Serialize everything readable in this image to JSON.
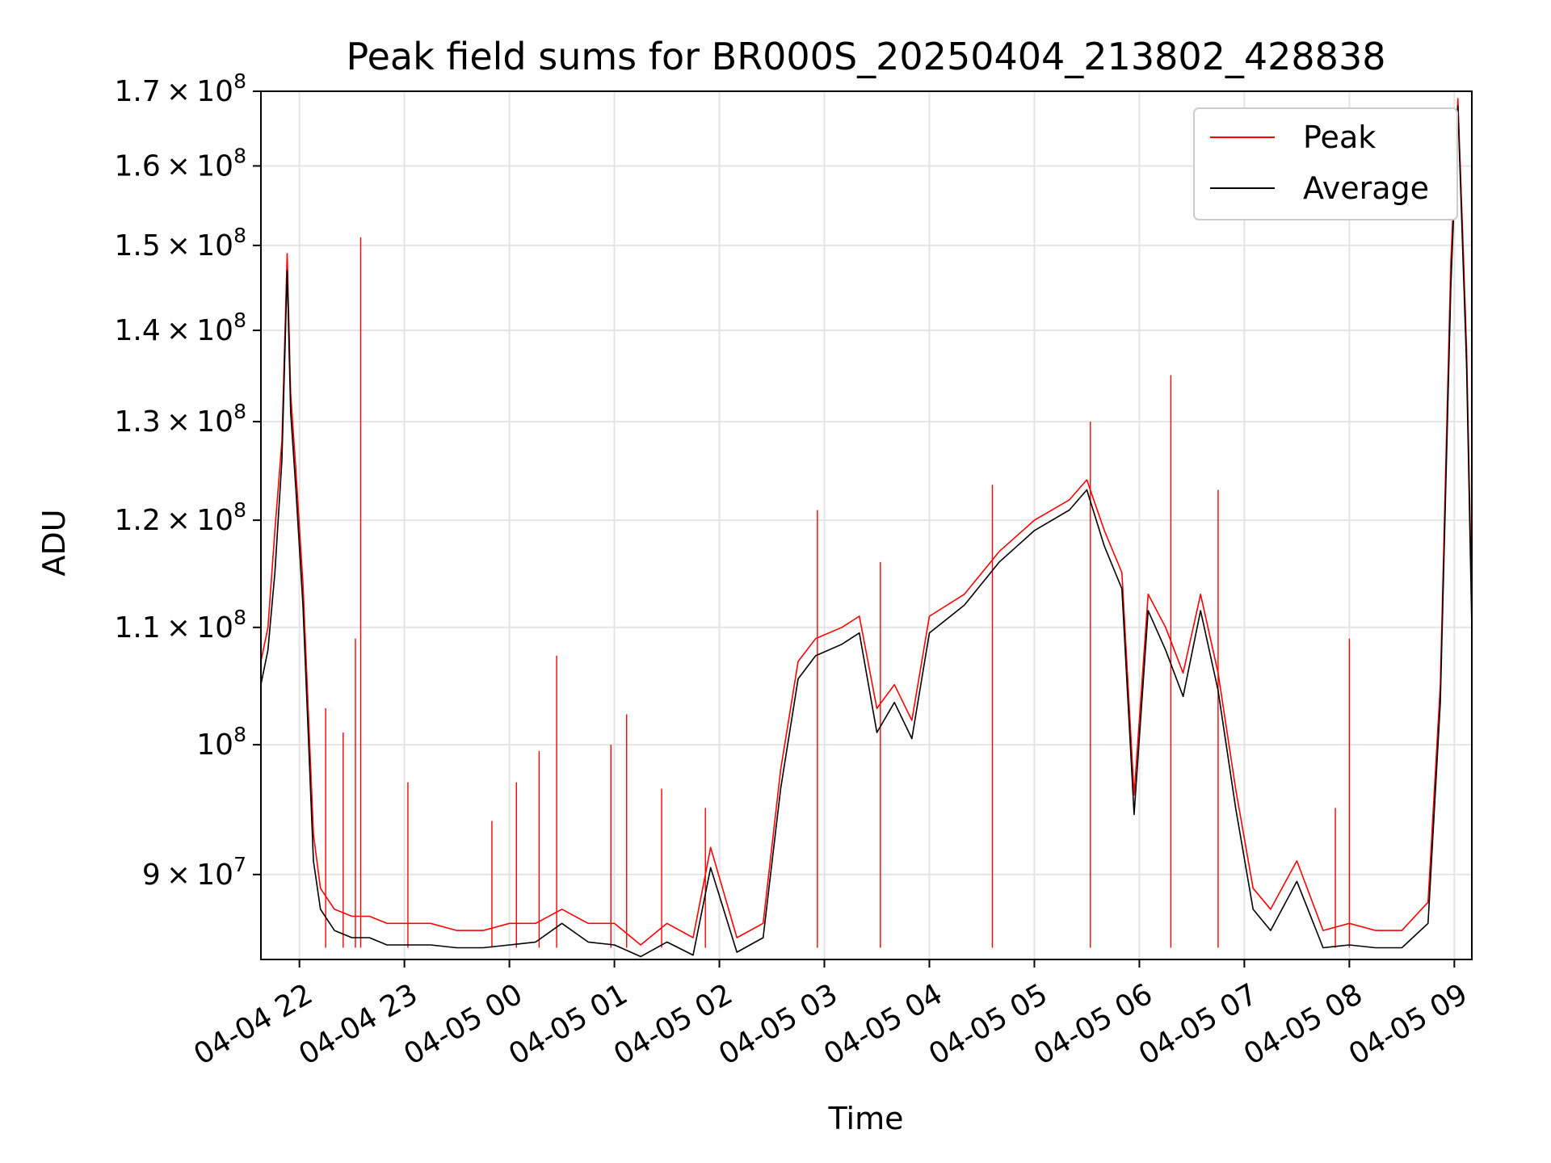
{
  "chart_data": {
    "type": "line",
    "title": "Peak field sums for BR000S_20250404_213802_428838",
    "xlabel": "Time",
    "ylabel": "ADU",
    "y_scale": "log",
    "ylim": [
      84000000,
      170000000
    ],
    "xlim": [
      "2025-04-04 21:38",
      "2025-04-05 09:10"
    ],
    "grid": true,
    "legend_position": "top-right",
    "x_ticks": [
      {
        "at": "2025-04-04 22:00",
        "label": "04-04 22"
      },
      {
        "at": "2025-04-04 23:00",
        "label": "04-04 23"
      },
      {
        "at": "2025-04-05 00:00",
        "label": "04-05 00"
      },
      {
        "at": "2025-04-05 01:00",
        "label": "04-05 01"
      },
      {
        "at": "2025-04-05 02:00",
        "label": "04-05 02"
      },
      {
        "at": "2025-04-05 03:00",
        "label": "04-05 03"
      },
      {
        "at": "2025-04-05 04:00",
        "label": "04-05 04"
      },
      {
        "at": "2025-04-05 05:00",
        "label": "04-05 05"
      },
      {
        "at": "2025-04-05 06:00",
        "label": "04-05 06"
      },
      {
        "at": "2025-04-05 07:00",
        "label": "04-05 07"
      },
      {
        "at": "2025-04-05 08:00",
        "label": "04-05 08"
      },
      {
        "at": "2025-04-05 09:00",
        "label": "04-05 09"
      }
    ],
    "y_ticks": [
      {
        "value": 90000000,
        "mantissa": "9",
        "exp": "7",
        "plain": false
      },
      {
        "value": 100000000,
        "mantissa": "",
        "exp": "8",
        "plain": true
      },
      {
        "value": 110000000,
        "mantissa": "1.1",
        "exp": "8",
        "plain": false
      },
      {
        "value": 120000000,
        "mantissa": "1.2",
        "exp": "8",
        "plain": false
      },
      {
        "value": 130000000,
        "mantissa": "1.3",
        "exp": "8",
        "plain": false
      },
      {
        "value": 140000000,
        "mantissa": "1.4",
        "exp": "8",
        "plain": false
      },
      {
        "value": 150000000,
        "mantissa": "1.5",
        "exp": "8",
        "plain": false
      },
      {
        "value": 160000000,
        "mantissa": "1.6",
        "exp": "8",
        "plain": false
      },
      {
        "value": 170000000,
        "mantissa": "1.7",
        "exp": "8",
        "plain": false
      }
    ],
    "series": [
      {
        "name": "Peak",
        "color": "#ff0000",
        "x": [
          "2025-04-04 21:38",
          "2025-04-04 21:42",
          "2025-04-04 21:46",
          "2025-04-04 21:50",
          "2025-04-04 21:53",
          "2025-04-04 21:55",
          "2025-04-04 21:58",
          "2025-04-04 22:02",
          "2025-04-04 22:05",
          "2025-04-04 22:08",
          "2025-04-04 22:12",
          "2025-04-04 22:20",
          "2025-04-04 22:30",
          "2025-04-04 22:40",
          "2025-04-04 22:50",
          "2025-04-04 23:00",
          "2025-04-04 23:15",
          "2025-04-04 23:30",
          "2025-04-04 23:45",
          "2025-04-05 00:00",
          "2025-04-05 00:15",
          "2025-04-05 00:30",
          "2025-04-05 00:45",
          "2025-04-05 01:00",
          "2025-04-05 01:15",
          "2025-04-05 01:30",
          "2025-04-05 01:45",
          "2025-04-05 01:55",
          "2025-04-05 02:10",
          "2025-04-05 02:25",
          "2025-04-05 02:35",
          "2025-04-05 02:45",
          "2025-04-05 02:55",
          "2025-04-05 03:10",
          "2025-04-05 03:20",
          "2025-04-05 03:30",
          "2025-04-05 03:40",
          "2025-04-05 03:50",
          "2025-04-05 04:00",
          "2025-04-05 04:20",
          "2025-04-05 04:40",
          "2025-04-05 05:00",
          "2025-04-05 05:20",
          "2025-04-05 05:30",
          "2025-04-05 05:40",
          "2025-04-05 05:50",
          "2025-04-05 05:57",
          "2025-04-05 06:05",
          "2025-04-05 06:15",
          "2025-04-05 06:25",
          "2025-04-05 06:35",
          "2025-04-05 06:45",
          "2025-04-05 06:55",
          "2025-04-05 07:05",
          "2025-04-05 07:15",
          "2025-04-05 07:30",
          "2025-04-05 07:45",
          "2025-04-05 08:00",
          "2025-04-05 08:15",
          "2025-04-05 08:30",
          "2025-04-05 08:45",
          "2025-04-05 08:52",
          "2025-04-05 08:58",
          "2025-04-05 09:02",
          "2025-04-05 09:05",
          "2025-04-05 09:07",
          "2025-04-05 09:10"
        ],
        "values": [
          107000000,
          110000000,
          119000000,
          128000000,
          149000000,
          133000000,
          125000000,
          114000000,
          103000000,
          93000000,
          89000000,
          87500000,
          87000000,
          87000000,
          86500000,
          86500000,
          86500000,
          86000000,
          86000000,
          86500000,
          86500000,
          87500000,
          86500000,
          86500000,
          85000000,
          86500000,
          85500000,
          92000000,
          85500000,
          86500000,
          98000000,
          107000000,
          109000000,
          110000000,
          111000000,
          103000000,
          105000000,
          102000000,
          111000000,
          113000000,
          117000000,
          120000000,
          122000000,
          124000000,
          119000000,
          115000000,
          96000000,
          113000000,
          110000000,
          106000000,
          113000000,
          106000000,
          96500000,
          89000000,
          87500000,
          91000000,
          86000000,
          86500000,
          86000000,
          86000000,
          88000000,
          105000000,
          148000000,
          169000000,
          150000000,
          138000000,
          112000000
        ],
        "spikes": [
          {
            "x": "2025-04-04 22:15",
            "value": 103000000
          },
          {
            "x": "2025-04-04 22:25",
            "value": 101000000
          },
          {
            "x": "2025-04-04 22:32",
            "value": 109000000
          },
          {
            "x": "2025-04-04 22:35",
            "value": 151000000
          },
          {
            "x": "2025-04-04 23:02",
            "value": 97000000
          },
          {
            "x": "2025-04-04 23:50",
            "value": 94000000
          },
          {
            "x": "2025-04-05 00:04",
            "value": 97000000
          },
          {
            "x": "2025-04-05 00:17",
            "value": 99500000
          },
          {
            "x": "2025-04-05 00:27",
            "value": 107500000
          },
          {
            "x": "2025-04-05 00:58",
            "value": 100000000
          },
          {
            "x": "2025-04-05 01:07",
            "value": 102500000
          },
          {
            "x": "2025-04-05 01:27",
            "value": 96500000
          },
          {
            "x": "2025-04-05 01:52",
            "value": 95000000
          },
          {
            "x": "2025-04-05 02:56",
            "value": 121000000
          },
          {
            "x": "2025-04-05 03:32",
            "value": 116000000
          },
          {
            "x": "2025-04-05 04:36",
            "value": 123500000
          },
          {
            "x": "2025-04-05 05:32",
            "value": 130000000
          },
          {
            "x": "2025-04-05 06:18",
            "value": 135000000
          },
          {
            "x": "2025-04-05 06:45",
            "value": 123000000
          },
          {
            "x": "2025-04-05 07:52",
            "value": 95000000
          },
          {
            "x": "2025-04-05 08:00",
            "value": 109000000
          }
        ]
      },
      {
        "name": "Average",
        "color": "#000000",
        "x": [
          "2025-04-04 21:38",
          "2025-04-04 21:42",
          "2025-04-04 21:46",
          "2025-04-04 21:50",
          "2025-04-04 21:53",
          "2025-04-04 21:55",
          "2025-04-04 21:58",
          "2025-04-04 22:02",
          "2025-04-04 22:05",
          "2025-04-04 22:08",
          "2025-04-04 22:12",
          "2025-04-04 22:20",
          "2025-04-04 22:30",
          "2025-04-04 22:40",
          "2025-04-04 22:50",
          "2025-04-04 23:00",
          "2025-04-04 23:15",
          "2025-04-04 23:30",
          "2025-04-04 23:45",
          "2025-04-05 00:00",
          "2025-04-05 00:15",
          "2025-04-05 00:30",
          "2025-04-05 00:45",
          "2025-04-05 01:00",
          "2025-04-05 01:15",
          "2025-04-05 01:30",
          "2025-04-05 01:45",
          "2025-04-05 01:55",
          "2025-04-05 02:10",
          "2025-04-05 02:25",
          "2025-04-05 02:35",
          "2025-04-05 02:45",
          "2025-04-05 02:55",
          "2025-04-05 03:10",
          "2025-04-05 03:20",
          "2025-04-05 03:30",
          "2025-04-05 03:40",
          "2025-04-05 03:50",
          "2025-04-05 04:00",
          "2025-04-05 04:20",
          "2025-04-05 04:40",
          "2025-04-05 05:00",
          "2025-04-05 05:20",
          "2025-04-05 05:30",
          "2025-04-05 05:40",
          "2025-04-05 05:50",
          "2025-04-05 05:57",
          "2025-04-05 06:05",
          "2025-04-05 06:15",
          "2025-04-05 06:25",
          "2025-04-05 06:35",
          "2025-04-05 06:45",
          "2025-04-05 06:55",
          "2025-04-05 07:05",
          "2025-04-05 07:15",
          "2025-04-05 07:30",
          "2025-04-05 07:45",
          "2025-04-05 08:00",
          "2025-04-05 08:15",
          "2025-04-05 08:30",
          "2025-04-05 08:45",
          "2025-04-05 08:52",
          "2025-04-05 08:58",
          "2025-04-05 09:02",
          "2025-04-05 09:05",
          "2025-04-05 09:07",
          "2025-04-05 09:10"
        ],
        "values": [
          105000000,
          108000000,
          115000000,
          126000000,
          147000000,
          131000000,
          123000000,
          112000000,
          101000000,
          91000000,
          87500000,
          86000000,
          85500000,
          85500000,
          85000000,
          85000000,
          85000000,
          84800000,
          84800000,
          85000000,
          85200000,
          86500000,
          85200000,
          85000000,
          84200000,
          85200000,
          84300000,
          90500000,
          84500000,
          85500000,
          96500000,
          105500000,
          107500000,
          108500000,
          109500000,
          101000000,
          103500000,
          100500000,
          109500000,
          112000000,
          116000000,
          119000000,
          121000000,
          123000000,
          117500000,
          113500000,
          94500000,
          111500000,
          108000000,
          104000000,
          111500000,
          104500000,
          95000000,
          87500000,
          86000000,
          89500000,
          84800000,
          85000000,
          84800000,
          84800000,
          86500000,
          103500000,
          145000000,
          168000000,
          148000000,
          136000000,
          110000000
        ]
      }
    ]
  }
}
